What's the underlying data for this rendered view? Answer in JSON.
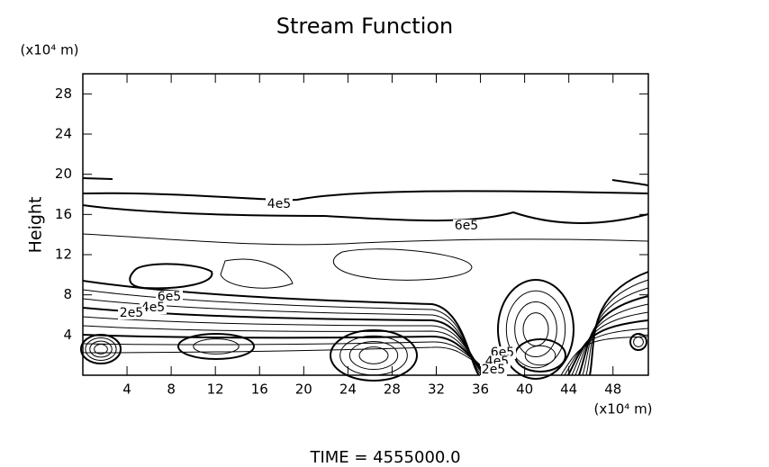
{
  "chart_data": {
    "type": "contour",
    "title": "Stream Function",
    "y_label": "Height",
    "y_unit": "(x10⁴ m)",
    "x_unit": "(x10⁴ m)",
    "footer": "TIME = 4555000.0",
    "xlim": [
      0,
      51.2
    ],
    "ylim": [
      0,
      30
    ],
    "xticks": [
      4,
      8,
      12,
      16,
      20,
      24,
      28,
      32,
      36,
      40,
      44,
      48
    ],
    "yticks": [
      4,
      8,
      12,
      16,
      20,
      24,
      28
    ],
    "contour_labels": [
      "4e5",
      "6e5",
      "6e5",
      "4e5",
      "2e5",
      "6e5",
      "4e5",
      "2e5"
    ]
  }
}
